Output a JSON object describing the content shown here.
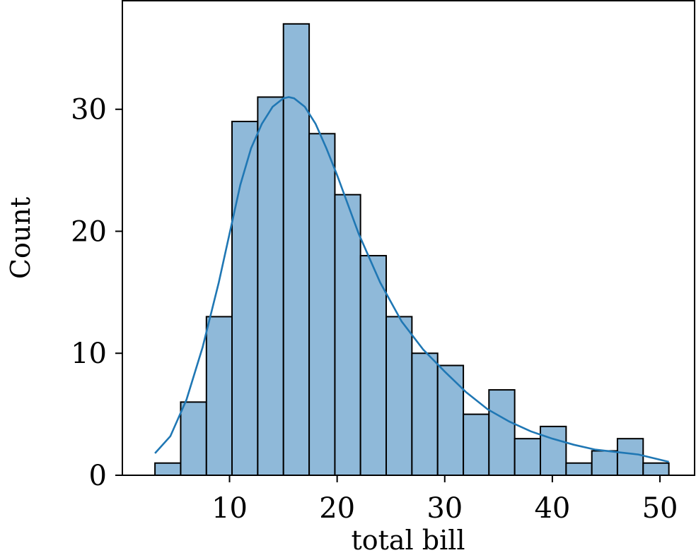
{
  "chart_data": {
    "type": "bar",
    "xlabel": "total bill",
    "ylabel": "Count",
    "xlim": [
      0.04,
      53.22
    ],
    "ylim": [
      0,
      38.9
    ],
    "xticks": [
      10,
      20,
      30,
      40,
      50
    ],
    "yticks": [
      0,
      10,
      20,
      30
    ],
    "bins": [
      {
        "x0": 3.07,
        "x1": 5.46,
        "count": 1
      },
      {
        "x0": 5.46,
        "x1": 7.85,
        "count": 6
      },
      {
        "x0": 7.85,
        "x1": 10.23,
        "count": 13
      },
      {
        "x0": 10.23,
        "x1": 12.62,
        "count": 29
      },
      {
        "x0": 12.62,
        "x1": 15.01,
        "count": 31
      },
      {
        "x0": 15.01,
        "x1": 17.4,
        "count": 37
      },
      {
        "x0": 17.4,
        "x1": 19.79,
        "count": 28
      },
      {
        "x0": 19.79,
        "x1": 22.17,
        "count": 23
      },
      {
        "x0": 22.17,
        "x1": 24.56,
        "count": 18
      },
      {
        "x0": 24.56,
        "x1": 26.95,
        "count": 13
      },
      {
        "x0": 26.95,
        "x1": 29.34,
        "count": 10
      },
      {
        "x0": 29.34,
        "x1": 31.73,
        "count": 9
      },
      {
        "x0": 31.73,
        "x1": 34.11,
        "count": 5
      },
      {
        "x0": 34.11,
        "x1": 36.5,
        "count": 7
      },
      {
        "x0": 36.5,
        "x1": 38.89,
        "count": 3
      },
      {
        "x0": 38.89,
        "x1": 41.28,
        "count": 4
      },
      {
        "x0": 41.28,
        "x1": 43.67,
        "count": 1
      },
      {
        "x0": 43.67,
        "x1": 46.05,
        "count": 2
      },
      {
        "x0": 46.05,
        "x1": 48.44,
        "count": 3
      },
      {
        "x0": 48.44,
        "x1": 50.83,
        "count": 1
      }
    ],
    "kde": {
      "x": [
        3.07,
        4.5,
        6,
        7.5,
        9,
        10,
        11,
        12,
        13,
        14,
        15,
        15.5,
        16,
        17,
        18,
        19,
        20,
        22,
        24,
        26,
        28,
        30,
        32,
        34,
        36,
        38,
        40,
        42,
        44,
        46,
        48,
        50.83
      ],
      "y": [
        1.8,
        3.2,
        6.2,
        10.5,
        15.8,
        19.8,
        23.8,
        26.8,
        28.8,
        30.2,
        30.9,
        31.0,
        30.9,
        30.2,
        28.8,
        26.8,
        24.6,
        19.8,
        15.8,
        12.6,
        10.3,
        8.5,
        6.8,
        5.4,
        4.4,
        3.6,
        3.0,
        2.5,
        2.1,
        1.9,
        1.7,
        1.1
      ]
    },
    "colors": {
      "bar_fill": "#8fb9d9",
      "bar_edge": "#000000",
      "kde_line": "#1f77b4"
    },
    "grid": false,
    "legend": "none"
  }
}
